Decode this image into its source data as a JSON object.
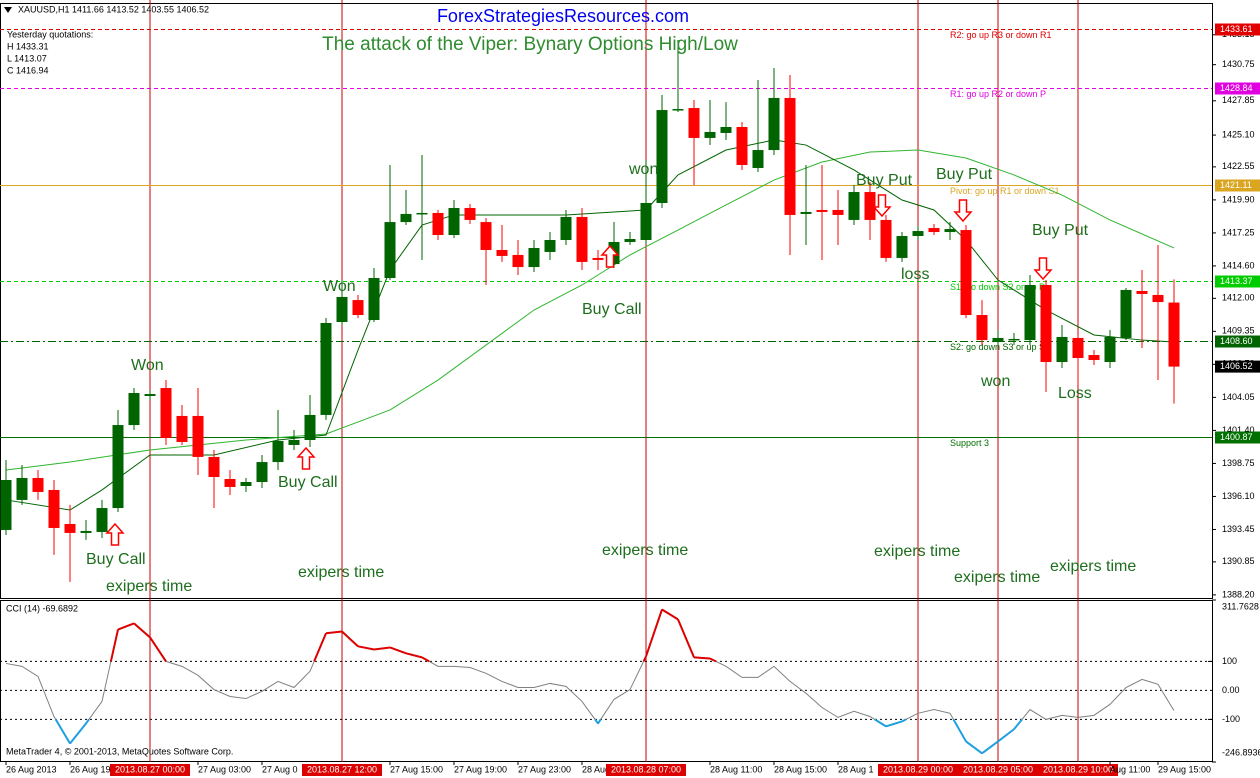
{
  "chart_data": [
    {
      "type": "candlestick",
      "header": "XAUUSD,H1 1411.66 1413.52 1403.55 1406.52",
      "site": "ForexStrategiesResources.com",
      "title": "The attack of the Viper: Bynary Options High/Low",
      "info": [
        "Yesterday quotations:",
        "H 1433.31",
        "L 1413.07",
        "C 1416.94"
      ],
      "categories": [
        "26 Aug 2013",
        null,
        null,
        null,
        "26 Aug 19:00",
        null,
        null,
        null,
        null,
        "2013.08.27 00:00",
        null,
        null,
        "27 Aug 03:00",
        null,
        null,
        null,
        "27 Aug 0",
        null,
        null,
        null,
        null,
        "2013.08.27 12:00",
        null,
        null,
        "27 Aug 15:00",
        null,
        null,
        null,
        "27 Aug 19:00",
        null,
        null,
        null,
        "27 Aug 23:00",
        null,
        null,
        null,
        "28 Aug 0",
        null,
        null,
        null,
        "2013.08.28 07:00",
        null,
        null,
        null,
        "28 Aug 11:00",
        null,
        null,
        null,
        "28 Aug 15:00",
        null,
        null,
        null,
        "28 Aug 1",
        null,
        null,
        null,
        null,
        "2013.08.29 00:00",
        null,
        null,
        null,
        null,
        "2013.08.29 05:00",
        null,
        null,
        null,
        null,
        "2013.08.29 10:00",
        null,
        "Aug 11:00",
        null,
        null,
        "29 Aug 15:00",
        null
      ],
      "open": [
        1393.41,
        1395.82,
        1397.58,
        1396.62,
        1393.89,
        1393.17,
        1393.25,
        1395.17,
        1401.83,
        1404.16,
        1404.8,
        1402.56,
        1402.56,
        1399.27,
        1397.5,
        1396.94,
        1397.26,
        1398.86,
        1400.23,
        1400.63,
        1402.64,
        1410.1,
        1411.86,
        1410.26,
        1413.63,
        1418.12,
        1418.77,
        1418.85,
        1417.08,
        1419.25,
        1418.12,
        1415.88,
        1415.48,
        1414.51,
        1415.72,
        1416.68,
        1418.53,
        1415.24,
        1414.75,
        1416.52,
        1416.68,
        1419.65,
        1427.11,
        1427.27,
        1424.87,
        1425.27,
        1425.75,
        1422.46,
        1423.9,
        1428.08,
        1418.77,
        1419.09,
        1419.09,
        1418.29,
        1420.53,
        1418.29,
        1415.24,
        1417.0,
        1417.64,
        1417.32,
        1417.48,
        1410.66,
        1408.49,
        1408.65,
        1408.65,
        1413.07,
        1406.89,
        1408.82,
        1407.45,
        1406.89,
        1408.82,
        1412.59,
        1412.27,
        1411.66
      ],
      "high": [
        1399.02,
        1398.62,
        1398.22,
        1397.42,
        1395.42,
        1394.21,
        1395.82,
        1403.04,
        1404.8,
        1404.64,
        1405.44,
        1403.44,
        1404.8,
        1399.83,
        1398.22,
        1397.58,
        1399.43,
        1403.04,
        1401.43,
        1404.24,
        1410.42,
        1413.47,
        1412.27,
        1414.43,
        1422.7,
        1420.69,
        1423.5,
        1419.09,
        1419.89,
        1419.57,
        1418.45,
        1417.88,
        1416.68,
        1416.68,
        1417.32,
        1419.09,
        1419.25,
        1415.88,
        1418.12,
        1417.32,
        1423.1,
        1428.32,
        1432.73,
        1427.92,
        1427.92,
        1427.75,
        1426.15,
        1429.52,
        1430.48,
        1429.92,
        1422.7,
        1422.7,
        1420.69,
        1421.09,
        1421.33,
        1418.69,
        1417.32,
        1417.8,
        1417.96,
        1418.12,
        1417.88,
        1411.86,
        1409.46,
        1409.22,
        1413.87,
        1413.47,
        1409.86,
        1409.06,
        1407.85,
        1409.46,
        1412.83,
        1414.27,
        1416.28,
        1413.52
      ],
      "low": [
        1393.01,
        1395.42,
        1395.82,
        1391.41,
        1389.24,
        1392.61,
        1392.77,
        1394.85,
        1401.43,
        1403.84,
        1400.23,
        1400.23,
        1397.82,
        1395.17,
        1396.22,
        1396.46,
        1396.78,
        1398.22,
        1399.83,
        1400.07,
        1402.24,
        1409.86,
        1410.42,
        1410.1,
        1413.47,
        1417.88,
        1415.08,
        1416.68,
        1416.84,
        1417.96,
        1413.07,
        1414.92,
        1413.87,
        1414.11,
        1415.08,
        1416.28,
        1414.27,
        1414.27,
        1414.43,
        1416.28,
        1416.36,
        1419.25,
        1426.95,
        1421.09,
        1424.3,
        1424.71,
        1422.3,
        1422.14,
        1423.5,
        1415.48,
        1416.28,
        1415.08,
        1416.28,
        1417.88,
        1416.68,
        1414.92,
        1414.92,
        1416.68,
        1417.08,
        1416.68,
        1410.42,
        1408.25,
        1408.25,
        1408.25,
        1408.25,
        1404.48,
        1406.41,
        1405.04,
        1406.65,
        1406.41,
        1408.65,
        1408.01,
        1405.44,
        1403.55
      ],
      "close": [
        1397.42,
        1397.58,
        1396.46,
        1393.57,
        1393.17,
        1393.33,
        1395.17,
        1401.83,
        1404.4,
        1404.32,
        1400.79,
        1400.47,
        1399.27,
        1397.66,
        1396.86,
        1397.26,
        1398.86,
        1400.55,
        1400.63,
        1402.64,
        1410.02,
        1412.11,
        1410.66,
        1413.63,
        1418.12,
        1418.77,
        1418.85,
        1417.08,
        1419.25,
        1418.29,
        1415.88,
        1415.4,
        1414.51,
        1416.04,
        1416.68,
        1418.53,
        1414.92,
        1415.08,
        1416.52,
        1416.76,
        1419.65,
        1427.11,
        1427.19,
        1424.87,
        1425.35,
        1425.75,
        1422.7,
        1423.9,
        1428.08,
        1418.69,
        1418.93,
        1418.93,
        1418.69,
        1420.53,
        1418.29,
        1415.24,
        1417.0,
        1417.4,
        1417.32,
        1417.56,
        1410.66,
        1408.65,
        1408.82,
        1408.74,
        1413.07,
        1406.89,
        1408.9,
        1407.21,
        1407.05,
        1408.9,
        1412.67,
        1412.35,
        1411.7,
        1406.52
      ],
      "up_color": "#006400",
      "down_color": "#ff0000",
      "ylim": [
        1387.95,
        1435.7
      ],
      "yticks": [
        1433.15,
        1430.75,
        1427.85,
        {
          "value": 1425.1,
          "label": "1425.10"
        },
        1422.55,
        {
          "value": 1419.9,
          "label": "1419.90"
        },
        1417.25,
        {
          "value": 1414.6,
          "label": "1414.60"
        },
        {
          "value": 1412,
          "label": "1412.00"
        },
        1409.35,
        {
          "value": 1406.7,
          "label": "1406.70"
        },
        1404.05,
        {
          "value": 1401.4,
          "label": "1401.40"
        },
        1398.75,
        {
          "value": 1396.1,
          "label": "1396.10"
        },
        1393.45,
        1390.85,
        {
          "value": 1388.2,
          "label": "1388.20"
        }
      ],
      "levels": [
        {
          "value": 1433.61,
          "label": "R2: go up R3 or down R1",
          "color": "#e00000",
          "style": "dashed"
        },
        {
          "value": 1428.84,
          "label": "R1: go up R2 or down P",
          "color": "#e000e0",
          "style": "dashed"
        },
        {
          "value": 1421.11,
          "label": "Pivot: go up R1 or down S1",
          "color": "#daa520",
          "style": "solid"
        },
        {
          "value": 1413.37,
          "label": "S1: go down S2 or up P",
          "color": "#00cc00",
          "style": "dashed"
        },
        {
          "value": 1408.6,
          "label": "S2: go down S3 or up S1",
          "color": "#006400",
          "style": "dashdot"
        },
        {
          "value": 1400.87,
          "label": "Support 3",
          "color": "#007000",
          "style": "solid"
        }
      ],
      "level_tags": [
        "1433.61",
        "1428.84",
        "1421.11",
        "1413.37",
        "1408.60",
        "1400.87"
      ],
      "last": 1406.52,
      "moving_averages": [
        {
          "color": "#2fb52f",
          "x": [
            0,
            4,
            9,
            15,
            20,
            24,
            27,
            30,
            33,
            36,
            39,
            42,
            45,
            48,
            51,
            54,
            57,
            60,
            63,
            66,
            69,
            73
          ],
          "values": [
            1398.22,
            1398.86,
            1399.83,
            1400.63,
            1401.11,
            1403.04,
            1405.44,
            1408.25,
            1411.06,
            1413.07,
            1415.48,
            1417.48,
            1419.49,
            1421.49,
            1422.94,
            1423.74,
            1423.9,
            1423.26,
            1421.9,
            1420.29,
            1418.29,
            1416.04
          ]
        },
        {
          "color": "#006400",
          "x": [
            0,
            4,
            6,
            9,
            13,
            17,
            20,
            22,
            24,
            26,
            28,
            31,
            35,
            40,
            42,
            45,
            48,
            50,
            53,
            56,
            58,
            60,
            62,
            65,
            68,
            71,
            73
          ],
          "values": [
            1395.82,
            1395.01,
            1396.62,
            1399.43,
            1399.43,
            1400.63,
            1401.03,
            1407.85,
            1414.27,
            1417.88,
            1418.69,
            1418.69,
            1418.69,
            1419.09,
            1421.9,
            1423.9,
            1424.71,
            1424.3,
            1422.3,
            1419.89,
            1419.09,
            1416.68,
            1413.47,
            1411.06,
            1409.06,
            1408.65,
            1408.49
          ]
        }
      ],
      "annotations": [
        "Buy Call",
        "Buy Call",
        "Buy Call",
        "Won",
        "Won",
        "won",
        "won",
        "Buy Put",
        "Buy Put",
        "Buy Put",
        "loss",
        "Loss",
        "exipers time",
        "exipers time",
        "exipers time",
        "exipers time",
        "exipers time",
        "exipers time"
      ]
    },
    {
      "type": "line",
      "label": "CCI (14) -69.6892",
      "footer": "MetaTrader 4, © 2001-2013, MetaQuotes Software Corp.",
      "values": [
        93,
        83,
        48,
        -90,
        -183,
        -114,
        -38,
        210,
        231,
        183,
        100,
        83,
        52,
        3,
        -21,
        -28,
        -3,
        31,
        10,
        66,
        197,
        203,
        152,
        141,
        148,
        128,
        114,
        83,
        83,
        79,
        59,
        31,
        10,
        10,
        24,
        14,
        -38,
        -114,
        -31,
        3,
        117,
        279,
        245,
        114,
        110,
        83,
        45,
        45,
        83,
        31,
        -10,
        -59,
        -93,
        -72,
        -90,
        -124,
        -107,
        -79,
        -66,
        -79,
        -176,
        -217,
        -176,
        -134,
        -66,
        -100,
        -86,
        -93,
        -86,
        -48,
        10,
        38,
        21,
        -69.6892
      ],
      "color": "#808080",
      "high_color": "#dd0000",
      "low_color": "#1ea0e0",
      "levels": [
        100,
        -100
      ],
      "ylim": [
        -246.8936,
        311.7628
      ],
      "yticks": [
        311.7628,
        100,
        {
          "value": 0,
          "label": "0.00"
        },
        -100,
        -246.8936
      ]
    }
  ]
}
